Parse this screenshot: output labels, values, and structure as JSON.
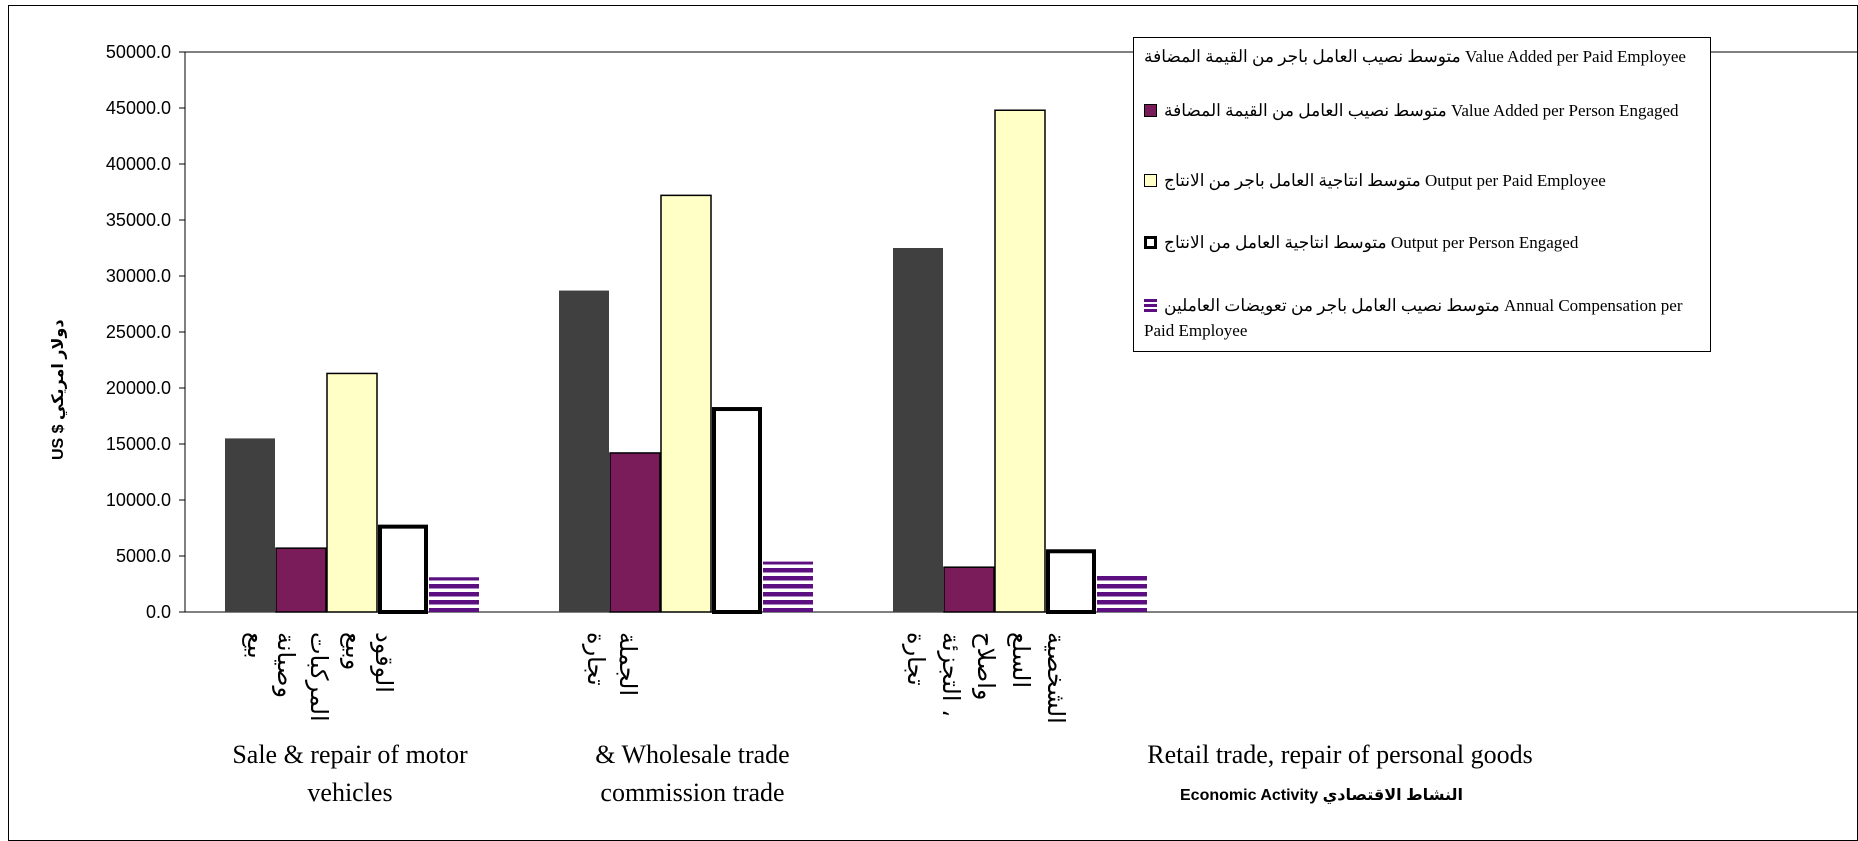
{
  "chart_data": {
    "type": "bar",
    "ylabel": "US $ دولار امريكي",
    "xlabel": "Economic Activity  النشاط الاقتصادي",
    "ylim": [
      0,
      50000
    ],
    "ytick_step": 5000,
    "ytick_labels": [
      "0.0",
      "5000.0",
      "10000.0",
      "15000.0",
      "20000.0",
      "25000.0",
      "30000.0",
      "35000.0",
      "40000.0",
      "45000.0",
      "50000.0"
    ],
    "categories": [
      {
        "en": "Sale & repair of motor vehicles",
        "ar": [
          "بيع",
          "وصيانة",
          "المركبات",
          "وبيع",
          "الوقود"
        ]
      },
      {
        "en": "& Wholesale trade commission trade",
        "ar": [
          "تجارة",
          "الجملة"
        ]
      },
      {
        "en": "Retail trade, repair of personal goods",
        "ar": [
          "تجارة",
          "التجزئة ،",
          "واصلاح",
          "السلع",
          "الشخصية"
        ]
      }
    ],
    "series": [
      {
        "name": "متوسط نصيب العامل باجر من القيمة المضافة Value Added per Paid Employee",
        "style": "dark",
        "color": "#404040",
        "values": [
          15500,
          28700,
          32500
        ]
      },
      {
        "name": "متوسط نصيب العامل من القيمة المضافة Value Added per Person Engaged",
        "style": "purple",
        "color": "#7B1C5A",
        "values": [
          5700,
          14200,
          4000
        ]
      },
      {
        "name": "متوسط انتاجية العامل باجر من الانتاج Output per Paid Employee",
        "style": "yellow",
        "color": "#FFFFC6",
        "values": [
          21300,
          37200,
          44800
        ]
      },
      {
        "name": "متوسط انتاجية العامل من الانتاج Output per Person Engaged",
        "style": "white-thick",
        "color": "#FFFFFF",
        "values": [
          7800,
          18300,
          5600
        ]
      },
      {
        "name": "متوسط نصيب العامل باجر من تعويضات العاملين Annual Compensation per Paid Employee",
        "style": "stripes",
        "color": "#5B0F80",
        "values": [
          3100,
          4500,
          3500
        ]
      }
    ],
    "legend_placement": "top-right",
    "grid": false
  },
  "legend": {
    "items": [
      {
        "text": "متوسط نصيب العامل باجر من القيمة المضافة Value Added per Paid Employee",
        "style": "none"
      },
      {
        "text": "متوسط نصيب العامل من القيمة المضافة Value Added per Person Engaged",
        "style": "purple"
      },
      {
        "text": "متوسط انتاجية العامل باجر من الانتاج Output per Paid Employee",
        "style": "yellow"
      },
      {
        "text": "متوسط انتاجية العامل من الانتاج Output per Person Engaged",
        "style": "white-thick"
      },
      {
        "text": "متوسط نصيب العامل باجر من تعويضات العاملين Annual Compensation per Paid Employee",
        "style": "stripes"
      }
    ]
  }
}
